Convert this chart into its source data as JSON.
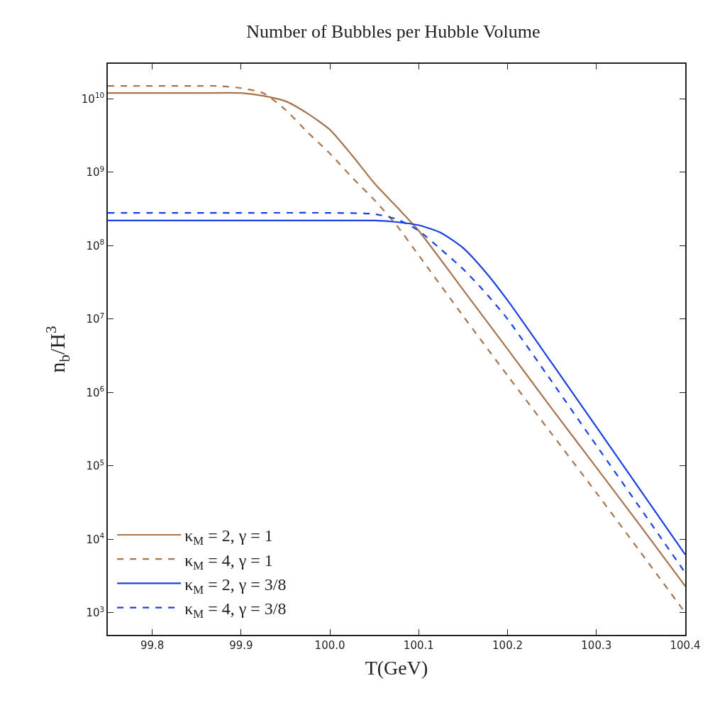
{
  "chart_data": {
    "type": "line",
    "title": "Number of Bubbles per Hubble Volume",
    "xlabel": "T(GeV)",
    "ylabel": "n$_{b}$/H$^{3}$",
    "log": "y",
    "grid": false,
    "legend": "bottom left",
    "marker": "none",
    "xlim": [
      99.75,
      100.4
    ],
    "xticks": [
      99.8,
      99.9,
      {
        "value": 100,
        "label": "100.0"
      },
      100.1,
      100.2,
      100.3,
      100.4
    ],
    "ylim": [
      500,
      30000000000
    ],
    "yticks": [
      {
        "value": 1000,
        "label": "10$^{3}$"
      },
      {
        "value": 10000,
        "label": "10$^{4}$"
      },
      {
        "value": 100000,
        "label": "10$^{5}$"
      },
      {
        "value": 1000000,
        "label": "10$^{6}$"
      },
      {
        "value": 10000000,
        "label": "10$^{7}$"
      },
      {
        "value": 100000000,
        "label": "10$^{8}$"
      },
      {
        "value": 1000000000,
        "label": "10$^{9}$"
      },
      {
        "value": 10000000000,
        "label": "10$^{10}$"
      }
    ],
    "series": [
      {
        "name": "κ$_{M}$ = 2, γ = 1",
        "color": "#a8744e",
        "line_style": "solid",
        "x": [
          99.75,
          99.8,
          99.85,
          99.9,
          99.925,
          99.95,
          99.975,
          100,
          100.025,
          100.05,
          100.075,
          100.1,
          100.15,
          100.2,
          100.25,
          100.3,
          100.35,
          100.4
        ],
        "values": [
          12000000000.0,
          12000000000.0,
          12000000000.0,
          12000000000.0,
          11000000000.0,
          9300000000.0,
          6300000000.0,
          3800000000.0,
          1700000000.0,
          710000000.0,
          340000000.0,
          160000000.0,
          25000000.0,
          3900000.0,
          600000.0,
          95000.0,
          15000.0,
          2300.0
        ]
      },
      {
        "name": "κ$_{M}$ = 4, γ = 1",
        "color": "#a8744e",
        "line_style": "dashed",
        "x": [
          99.75,
          99.8,
          99.85,
          99.875,
          99.9,
          99.925,
          99.95,
          99.975,
          100,
          100.025,
          100.05,
          100.075,
          100.1,
          100.15,
          100.2,
          100.25,
          100.3,
          100.35,
          100.4
        ],
        "values": [
          15000000000.0,
          15000000000.0,
          15000000000.0,
          15000000000.0,
          14000000000.0,
          12000000000.0,
          7100000000.0,
          3500000000.0,
          1800000000.0,
          850000000.0,
          420000000.0,
          190000000.0,
          74000000.0,
          11000000.0,
          1700000.0,
          270000.0,
          43000.0,
          6600.0,
          1000.0
        ]
      },
      {
        "name": "κ$_{M}$ = 2, γ = 3/8",
        "color": "#1a40e0",
        "line_style": "solid",
        "x": [
          99.75,
          99.9,
          100,
          100.05,
          100.075,
          100.1,
          100.125,
          100.15,
          100.175,
          100.2,
          100.25,
          100.3,
          100.35,
          100.4
        ],
        "values": [
          220000000.0,
          220000000.0,
          220000000.0,
          220000000.0,
          210000000.0,
          190000000.0,
          150000000.0,
          93000000.0,
          44000000.0,
          18000000.0,
          2500000.0,
          340000.0,
          46000.0,
          6200.0
        ]
      },
      {
        "name": "κ$_{M}$ = 4, γ = 3/8",
        "color": "#1a40e0",
        "line_style": "dashed",
        "x": [
          99.75,
          99.9,
          100,
          100.05,
          100.075,
          100.1,
          100.125,
          100.15,
          100.175,
          100.2,
          100.25,
          100.3,
          100.35,
          100.4
        ],
        "values": [
          280000000.0,
          280000000.0,
          280000000.0,
          270000000.0,
          230000000.0,
          160000000.0,
          89000000.0,
          48000000.0,
          23000000.0,
          10000000.0,
          1400000.0,
          190000.0,
          26000.0,
          3500.0
        ]
      }
    ]
  }
}
